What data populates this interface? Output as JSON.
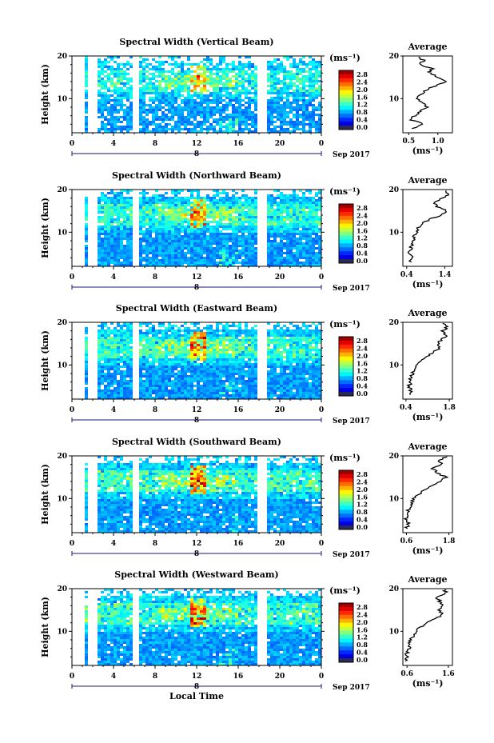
{
  "figure": {
    "date_label": "Sep 2017",
    "x_axis_label": "Local Time",
    "unit_label": "(ms⁻¹)",
    "average_title": "Average",
    "y_axis_label": "Height (km)"
  },
  "chart_data": [
    {
      "type": "heatmap",
      "title": "Spectral Width (Vertical Beam)",
      "xlabel": "Local Time",
      "ylabel": "Height (km)",
      "xlim": [
        0,
        24
      ],
      "ylim": [
        2,
        20
      ],
      "xticks": [
        "0",
        "4",
        "8",
        "12",
        "16",
        "20",
        "0"
      ],
      "yticks": [
        "10",
        "20"
      ],
      "date_marker": "8",
      "colorbar": {
        "unit": "(ms⁻¹)",
        "ticks": [
          "2.8",
          "2.4",
          "2.0",
          "1.6",
          "1.2",
          "0.8",
          "0.4",
          "0.0"
        ],
        "range": [
          0,
          3.0
        ]
      },
      "data_gaps_hours": [
        [
          0,
          1.1
        ],
        [
          1.4,
          2.2
        ],
        [
          5.6,
          6.2
        ],
        [
          17.8,
          18.5
        ]
      ],
      "average_profile": {
        "title": "Average",
        "xlabel": "(ms⁻¹)",
        "xticks": [
          "0.5",
          "1.0"
        ],
        "xlim": [
          0.4,
          1.25
        ],
        "heights_km": [
          3,
          4,
          5,
          6,
          7,
          8,
          9,
          10,
          11,
          12,
          13,
          14,
          15,
          16,
          17,
          18,
          19,
          20
        ],
        "values": [
          0.55,
          0.75,
          0.55,
          0.6,
          0.7,
          0.8,
          0.75,
          0.65,
          0.7,
          0.8,
          0.95,
          1.15,
          1.0,
          0.85,
          0.9,
          0.7,
          0.75,
          0.6
        ]
      }
    },
    {
      "type": "heatmap",
      "title": "Spectral Width (Northward Beam)",
      "xlabel": "Local Time",
      "ylabel": "Height (km)",
      "xlim": [
        0,
        24
      ],
      "ylim": [
        2,
        20
      ],
      "xticks": [
        "0",
        "4",
        "8",
        "12",
        "16",
        "20",
        "0"
      ],
      "yticks": [
        "10",
        "20"
      ],
      "date_marker": "8",
      "colorbar": {
        "unit": "(ms⁻¹)",
        "ticks": [
          "2.8",
          "2.4",
          "2.0",
          "1.6",
          "1.2",
          "0.8",
          "0.4",
          "0.0"
        ],
        "range": [
          0,
          3.0
        ]
      },
      "data_gaps_hours": [
        [
          0,
          1.1
        ],
        [
          1.4,
          2.2
        ],
        [
          5.6,
          6.2
        ],
        [
          17.8,
          18.5
        ]
      ],
      "average_profile": {
        "title": "Average",
        "xlabel": "(ms⁻¹)",
        "xticks": [
          "0.4",
          "1.4"
        ],
        "xlim": [
          0.3,
          1.6
        ],
        "heights_km": [
          3,
          4,
          5,
          6,
          7,
          8,
          9,
          10,
          11,
          12,
          13,
          14,
          15,
          16,
          17,
          18,
          19,
          20
        ],
        "values": [
          0.5,
          0.55,
          0.45,
          0.5,
          0.55,
          0.6,
          0.6,
          0.65,
          0.7,
          0.8,
          1.0,
          1.3,
          1.45,
          1.2,
          1.1,
          1.35,
          1.5,
          1.4
        ]
      }
    },
    {
      "type": "heatmap",
      "title": "Spectral Width (Eastward Beam)",
      "xlabel": "Local Time",
      "ylabel": "Height (km)",
      "xlim": [
        0,
        24
      ],
      "ylim": [
        2,
        20
      ],
      "xticks": [
        "0",
        "4",
        "8",
        "12",
        "16",
        "20",
        "0"
      ],
      "yticks": [
        "10",
        "20"
      ],
      "date_marker": "8",
      "colorbar": {
        "unit": "(ms⁻¹)",
        "ticks": [
          "2.8",
          "2.4",
          "2.0",
          "1.6",
          "1.2",
          "0.8",
          "0.4",
          "0.0"
        ],
        "range": [
          0,
          3.0
        ]
      },
      "data_gaps_hours": [
        [
          0,
          1.1
        ],
        [
          1.4,
          2.2
        ],
        [
          5.6,
          6.2
        ],
        [
          17.8,
          18.5
        ]
      ],
      "average_profile": {
        "title": "Average",
        "xlabel": "(ms⁻¹)",
        "xticks": [
          "0.4",
          "1.8"
        ],
        "xlim": [
          0.3,
          1.9
        ],
        "heights_km": [
          3,
          4,
          5,
          6,
          7,
          8,
          9,
          10,
          11,
          12,
          13,
          14,
          15,
          16,
          17,
          18,
          19,
          20
        ],
        "values": [
          0.55,
          0.55,
          0.5,
          0.55,
          0.55,
          0.6,
          0.65,
          0.75,
          0.9,
          1.1,
          1.3,
          1.5,
          1.45,
          1.55,
          1.7,
          1.6,
          1.75,
          1.5
        ]
      }
    },
    {
      "type": "heatmap",
      "title": "Spectral Width (Southward Beam)",
      "xlabel": "Local Time",
      "ylabel": "Height (km)",
      "xlim": [
        0,
        24
      ],
      "ylim": [
        2,
        20
      ],
      "xticks": [
        "0",
        "4",
        "8",
        "12",
        "16",
        "20",
        "0"
      ],
      "yticks": [
        "10",
        "20"
      ],
      "date_marker": "8",
      "colorbar": {
        "unit": "(ms⁻¹)",
        "ticks": [
          "2.8",
          "2.4",
          "2.0",
          "1.6",
          "1.2",
          "0.8",
          "0.4",
          "0.0"
        ],
        "range": [
          0,
          3.0
        ]
      },
      "data_gaps_hours": [
        [
          0,
          1.1
        ],
        [
          1.4,
          2.2
        ],
        [
          5.6,
          6.2
        ],
        [
          17.8,
          18.5
        ]
      ],
      "average_profile": {
        "title": "Average",
        "xlabel": "(ms⁻¹)",
        "xticks": [
          "0.6",
          "1.8"
        ],
        "xlim": [
          0.5,
          1.9
        ],
        "heights_km": [
          3,
          4,
          5,
          6,
          7,
          8,
          9,
          10,
          11,
          12,
          13,
          14,
          15,
          16,
          17,
          18,
          19,
          20
        ],
        "values": [
          0.6,
          0.65,
          0.6,
          0.6,
          0.65,
          0.7,
          0.75,
          0.8,
          0.95,
          1.1,
          1.3,
          1.55,
          1.7,
          1.5,
          1.35,
          1.6,
          1.5,
          1.8
        ]
      }
    },
    {
      "type": "heatmap",
      "title": "Spectral Width (Westward Beam)",
      "xlabel": "Local Time",
      "ylabel": "Height (km)",
      "xlim": [
        0,
        24
      ],
      "ylim": [
        2,
        20
      ],
      "xticks": [
        "0",
        "4",
        "8",
        "12",
        "16",
        "20",
        "0"
      ],
      "yticks": [
        "10",
        "20"
      ],
      "date_marker": "8",
      "colorbar": {
        "unit": "(ms⁻¹)",
        "ticks": [
          "2.8",
          "2.4",
          "2.0",
          "1.6",
          "1.2",
          "0.8",
          "0.4",
          "0.0"
        ],
        "range": [
          0,
          3.0
        ]
      },
      "data_gaps_hours": [
        [
          0,
          1.1
        ],
        [
          1.4,
          2.2
        ],
        [
          5.6,
          6.2
        ],
        [
          17.8,
          18.5
        ]
      ],
      "average_profile": {
        "title": "Average",
        "xlabel": "(ms⁻¹)",
        "xticks": [
          "0.6",
          "1.6"
        ],
        "xlim": [
          0.5,
          1.7
        ],
        "heights_km": [
          3,
          4,
          5,
          6,
          7,
          8,
          9,
          10,
          11,
          12,
          13,
          14,
          15,
          16,
          17,
          18,
          19,
          20
        ],
        "values": [
          0.6,
          0.6,
          0.6,
          0.65,
          0.65,
          0.7,
          0.75,
          0.8,
          0.95,
          1.1,
          1.3,
          1.45,
          1.35,
          1.5,
          1.4,
          1.3,
          1.55,
          1.5
        ]
      }
    }
  ]
}
